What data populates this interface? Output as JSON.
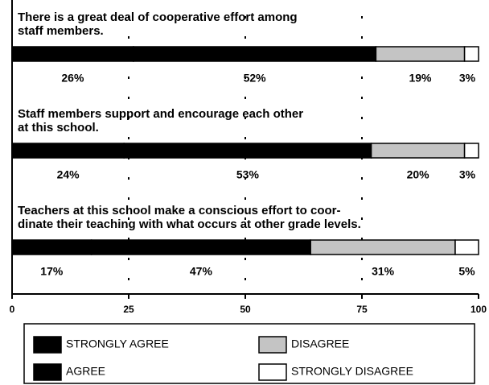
{
  "chart_data": {
    "type": "bar",
    "orientation": "horizontal",
    "stacked": true,
    "categories": [
      "There is a great deal of cooperative effort among\nstaff members.",
      "Staff members support and encourage each other\nat this school.",
      "Teachers at this school make a conscious effort to coor-\ndinate their teaching with what occurs at other grade levels."
    ],
    "series": [
      {
        "name": "STRONGLY AGREE",
        "color": "#000000",
        "values": [
          26,
          24,
          17
        ],
        "value_labels": [
          "26%",
          "24%",
          "17%"
        ]
      },
      {
        "name": "AGREE",
        "color": "#000000",
        "values": [
          52,
          53,
          47
        ],
        "value_labels": [
          "52%",
          "53%",
          "47%"
        ]
      },
      {
        "name": "DISAGREE",
        "color": "#c4c4c4",
        "values": [
          19,
          20,
          31
        ],
        "value_labels": [
          "19%",
          "20%",
          "31%"
        ]
      },
      {
        "name": "STRONGLY DISAGREE",
        "color": "#ffffff",
        "values": [
          3,
          3,
          5
        ],
        "value_labels": [
          "3%",
          "3%",
          "5%"
        ]
      }
    ],
    "xlim": [
      0,
      100
    ],
    "xticks": [
      0,
      25,
      50,
      75,
      100
    ],
    "grid": true
  }
}
